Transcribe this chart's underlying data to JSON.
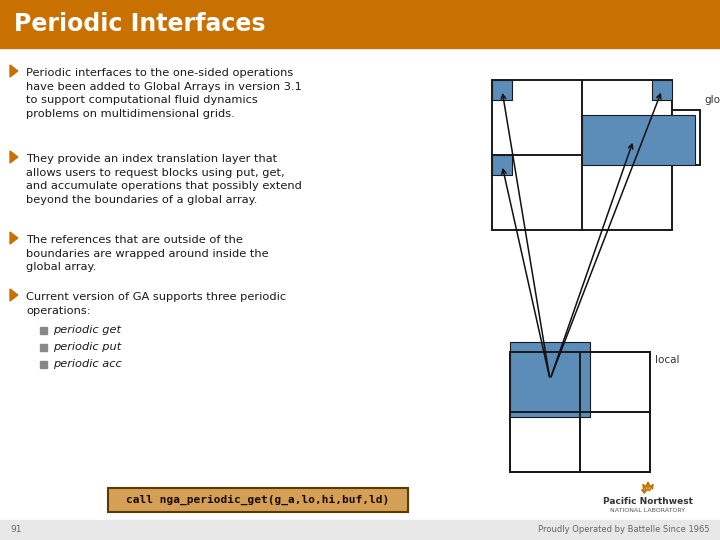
{
  "title": "Periodic Interfaces",
  "title_bg": "#C87000",
  "title_color": "#FFFFFF",
  "bg_color": "#FFFFFF",
  "bullet_color": "#C87000",
  "text_color": "#1A1A1A",
  "bullets": [
    "Periodic interfaces to the one-sided operations\nhave been added to Global Arrays in version 3.1\nto support computational fluid dynamics\nproblems on multidimensional grids.",
    "They provide an index translation layer that\nallows users to request blocks using put, get,\nand accumulate operations that possibly extend\nbeyond the boundaries of a global array.",
    "The references that are outside of the\nboundaries are wrapped around inside the\nglobal array.",
    "Current version of GA supports three periodic\noperations:"
  ],
  "sub_bullets": [
    "periodic get",
    "periodic put",
    "periodic acc"
  ],
  "code_text": "call nga_periodic_get(g_a,lo,hi,buf,ld)",
  "code_bg": "#D4A055",
  "code_border": "#5A3A00",
  "blue_color": "#5B8DB8",
  "diagram_border": "#1A1A1A",
  "slide_number": "91",
  "footer_text": "Proudly Operated by Battelle Since 1965",
  "footer_bg": "#E8E8E8"
}
